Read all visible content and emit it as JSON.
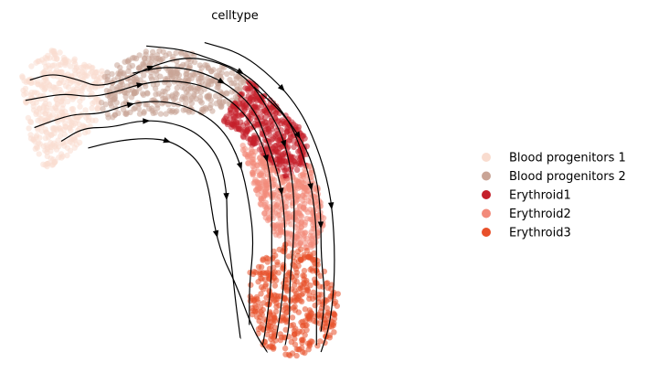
{
  "chart_data": {
    "type": "scatter",
    "title": "celltype",
    "xlabel": "",
    "ylabel": "",
    "grid": false,
    "legend_position": "right",
    "xlim": [
      0,
      100
    ],
    "ylim": [
      0,
      100
    ],
    "series": [
      {
        "name": "Blood progenitors 1",
        "color": "#f9dccf",
        "centroid": [
          10,
          74
        ],
        "region_polygon": [
          [
            1,
            86
          ],
          [
            8,
            93
          ],
          [
            20,
            87
          ],
          [
            18,
            72
          ],
          [
            12,
            62
          ],
          [
            6,
            57
          ],
          [
            3,
            67
          ]
        ]
      },
      {
        "name": "Blood progenitors 2",
        "color": "#c9a496",
        "centroid": [
          32,
          84
        ],
        "region_polygon": [
          [
            20,
            87
          ],
          [
            30,
            93
          ],
          [
            40,
            92
          ],
          [
            52,
            84
          ],
          [
            50,
            76
          ],
          [
            40,
            74
          ],
          [
            28,
            74
          ],
          [
            18,
            72
          ]
        ]
      },
      {
        "name": "Erythroid1",
        "color": "#c41f2a",
        "centroid": [
          52,
          66
        ],
        "region_polygon": [
          [
            46,
            72
          ],
          [
            52,
            84
          ],
          [
            57,
            78
          ],
          [
            64,
            69
          ],
          [
            66,
            60
          ],
          [
            60,
            54
          ],
          [
            55,
            62
          ],
          [
            50,
            68
          ]
        ]
      },
      {
        "name": "Erythroid2",
        "color": "#f28a7a",
        "centroid": [
          60,
          48
        ],
        "region_polygon": [
          [
            50,
            66
          ],
          [
            55,
            62
          ],
          [
            60,
            54
          ],
          [
            66,
            60
          ],
          [
            69,
            42
          ],
          [
            66,
            34
          ],
          [
            59,
            36
          ],
          [
            55,
            45
          ]
        ]
      },
      {
        "name": "Erythroid3",
        "color": "#e8502a",
        "centroid": [
          61,
          17
        ],
        "region_polygon": [
          [
            52,
            28
          ],
          [
            59,
            36
          ],
          [
            66,
            34
          ],
          [
            72,
            22
          ],
          [
            71,
            8
          ],
          [
            62,
            2
          ],
          [
            55,
            6
          ],
          [
            52,
            16
          ]
        ]
      }
    ],
    "streamlines": [
      [
        [
          3,
          84
        ],
        [
          8,
          86
        ],
        [
          14,
          84
        ],
        [
          18,
          82
        ],
        [
          24,
          84
        ],
        [
          30,
          88
        ],
        [
          38,
          91
        ],
        [
          46,
          89
        ],
        [
          52,
          84
        ],
        [
          56,
          76
        ],
        [
          60,
          66
        ],
        [
          62,
          52
        ],
        [
          62,
          38
        ],
        [
          61,
          24
        ],
        [
          61,
          12
        ],
        [
          60,
          6
        ]
      ],
      [
        [
          2,
          78
        ],
        [
          6,
          79
        ],
        [
          11,
          80
        ],
        [
          16,
          79
        ],
        [
          21,
          80
        ],
        [
          28,
          83
        ],
        [
          35,
          84
        ],
        [
          43,
          82
        ],
        [
          50,
          76
        ],
        [
          55,
          66
        ],
        [
          57,
          54
        ],
        [
          57,
          40
        ],
        [
          57,
          26
        ],
        [
          56,
          14
        ],
        [
          55,
          6
        ]
      ],
      [
        [
          4,
          70
        ],
        [
          8,
          72
        ],
        [
          13,
          74
        ],
        [
          19,
          74
        ],
        [
          25,
          77
        ],
        [
          32,
          78
        ],
        [
          39,
          76
        ],
        [
          46,
          70
        ],
        [
          50,
          60
        ],
        [
          52,
          48
        ],
        [
          53,
          36
        ],
        [
          52,
          24
        ],
        [
          52,
          12
        ]
      ],
      [
        [
          10,
          66
        ],
        [
          15,
          70
        ],
        [
          21,
          70
        ],
        [
          27,
          72
        ],
        [
          33,
          72
        ],
        [
          40,
          69
        ],
        [
          45,
          62
        ],
        [
          47,
          52
        ],
        [
          47,
          40
        ],
        [
          48,
          30
        ],
        [
          49,
          18
        ],
        [
          50,
          8
        ]
      ],
      [
        [
          16,
          64
        ],
        [
          22,
          66
        ],
        [
          29,
          67
        ],
        [
          35,
          66
        ],
        [
          41,
          60
        ],
        [
          43,
          52
        ],
        [
          44,
          42
        ],
        [
          46,
          32
        ],
        [
          49,
          24
        ],
        [
          53,
          10
        ],
        [
          56,
          4
        ]
      ],
      [
        [
          29,
          94
        ],
        [
          37,
          93
        ],
        [
          44,
          90
        ],
        [
          51,
          86
        ],
        [
          56,
          80
        ],
        [
          61,
          72
        ],
        [
          64,
          62
        ],
        [
          66,
          52
        ],
        [
          67,
          40
        ],
        [
          67,
          28
        ],
        [
          67,
          16
        ],
        [
          67,
          6
        ]
      ],
      [
        [
          42,
          95
        ],
        [
          50,
          92
        ],
        [
          57,
          85
        ],
        [
          63,
          76
        ],
        [
          67,
          65
        ],
        [
          70,
          52
        ],
        [
          71,
          38
        ],
        [
          71,
          24
        ],
        [
          70,
          12
        ],
        [
          68,
          4
        ]
      ],
      [
        [
          53,
          82
        ],
        [
          59,
          75
        ],
        [
          64,
          66
        ],
        [
          67,
          56
        ],
        [
          68,
          44
        ],
        [
          68,
          32
        ],
        [
          69,
          20
        ],
        [
          68,
          10
        ]
      ],
      [
        [
          26,
          86
        ],
        [
          33,
          88
        ],
        [
          40,
          87
        ],
        [
          47,
          83
        ],
        [
          53,
          76
        ],
        [
          56,
          66
        ],
        [
          59,
          54
        ],
        [
          60,
          42
        ],
        [
          60,
          28
        ],
        [
          59,
          16
        ],
        [
          58,
          8
        ]
      ]
    ]
  }
}
